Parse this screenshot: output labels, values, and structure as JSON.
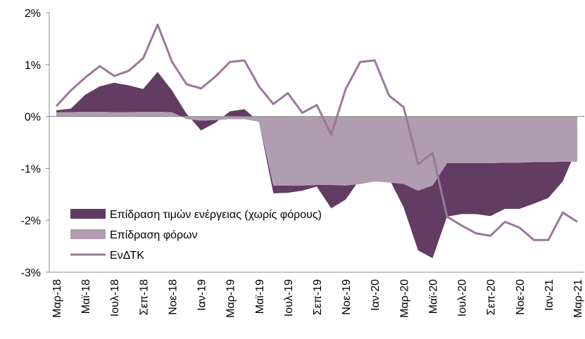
{
  "chart_data": {
    "type": "stacked-area-line",
    "categories": [
      "Μαρ-18",
      null,
      "Μαϊ-18",
      null,
      "Ιουλ-18",
      null,
      "Σεπ-18",
      null,
      "Νοε-18",
      null,
      "Ιαν-19",
      null,
      "Μαρ-19",
      null,
      "Μαϊ-19",
      null,
      "Ιουλ-19",
      null,
      "Σεπ-19",
      null,
      "Νοε-19",
      null,
      "Ιαν-20",
      null,
      "Μαρ-20",
      null,
      "Μαϊ-20",
      null,
      "Ιουλ-20",
      null,
      "Σεπ-20",
      null,
      "Νοε-20",
      null,
      "Ιαν-21",
      null,
      "Μαρ-21"
    ],
    "series": [
      {
        "name": "Επίδραση τιμών ενέργειας (χωρίς φόρους)",
        "color": "#633c63",
        "kind": "area",
        "stack_order": 2,
        "values": [
          0.04,
          0.07,
          0.33,
          0.49,
          0.57,
          0.52,
          0.44,
          0.77,
          0.42,
          0.1,
          -0.19,
          -0.05,
          0.15,
          0.19,
          0,
          -0.15,
          -0.14,
          -0.1,
          -0.03,
          -0.45,
          -0.27,
          0.1,
          0.32,
          0.07,
          -0.45,
          -1.15,
          -1.4,
          -1.03,
          -0.98,
          -0.98,
          -1.02,
          -0.89,
          -0.89,
          -0.8,
          -0.69,
          -0.38,
          0.27
        ]
      },
      {
        "name": "Επίδραση φόρων",
        "color": "#b09db1",
        "kind": "area",
        "stack_order": 1,
        "values": [
          0.08,
          0.08,
          0.09,
          0.09,
          0.08,
          0.08,
          0.09,
          0.09,
          0.08,
          -0.05,
          -0.08,
          -0.07,
          -0.05,
          -0.05,
          -0.1,
          -1.33,
          -1.33,
          -1.33,
          -1.32,
          -1.32,
          -1.33,
          -1.3,
          -1.25,
          -1.27,
          -1.3,
          -1.43,
          -1.33,
          -0.9,
          -0.9,
          -0.9,
          -0.9,
          -0.89,
          -0.89,
          -0.88,
          -0.88,
          -0.87,
          -0.87
        ]
      },
      {
        "name": "ΕνΔΤΚ",
        "color": "#9a789a",
        "kind": "line",
        "values": [
          0.2,
          0.5,
          0.75,
          0.97,
          0.78,
          0.88,
          1.12,
          1.77,
          1.05,
          0.62,
          0.54,
          0.77,
          1.05,
          1.08,
          0.58,
          0.24,
          0.45,
          0.07,
          0.22,
          -0.35,
          0.53,
          1.05,
          1.08,
          0.4,
          0.18,
          -0.92,
          -0.7,
          -1.93,
          -2.1,
          -2.25,
          -2.3,
          -2.03,
          -2.14,
          -2.38,
          -2.38,
          -1.85,
          -2.03
        ]
      }
    ],
    "ylim": [
      -3,
      2
    ],
    "yticks": [
      {
        "value": -3,
        "label": "-3%"
      },
      {
        "value": -2,
        "label": "-2%"
      },
      {
        "value": -1,
        "label": "-1%"
      },
      {
        "value": 0,
        "label": "0%"
      },
      {
        "value": 1,
        "label": "1%"
      },
      {
        "value": 2,
        "label": "2%"
      }
    ],
    "grid": false,
    "legend": "lower left"
  }
}
